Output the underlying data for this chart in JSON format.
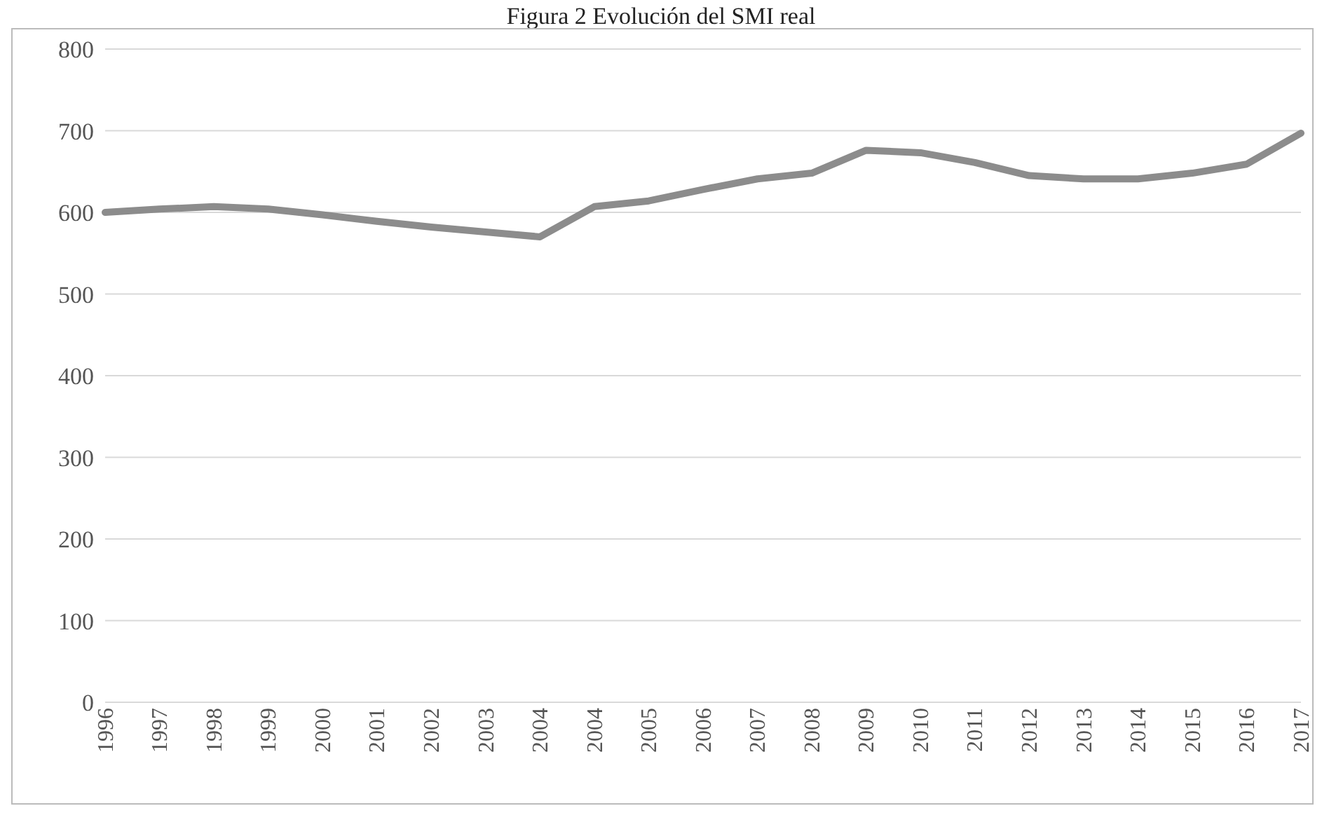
{
  "chart_data": {
    "type": "line",
    "title": "Figura 2 Evolución del SMI real",
    "categories": [
      "1996",
      "1997",
      "1998",
      "1999",
      "2000",
      "2001",
      "2002",
      "2003",
      "2004",
      "2004",
      "2005",
      "2006",
      "2007",
      "2008",
      "2009",
      "2010",
      "2011",
      "2012",
      "2013",
      "2014",
      "2015",
      "2016",
      "2017"
    ],
    "series": [
      {
        "color": "#8c8c8c",
        "values": [
          600,
          604,
          607,
          604,
          597,
          589,
          582,
          576,
          570,
          607,
          614,
          628,
          641,
          648,
          676,
          673,
          661,
          645,
          641,
          641,
          648,
          659,
          697
        ]
      }
    ],
    "ylim": [
      0,
      800
    ],
    "yticks": [
      0,
      100,
      200,
      300,
      400,
      500,
      600,
      700,
      800
    ],
    "grid": "y",
    "legend": false,
    "marker": "none",
    "line_style": "solid"
  }
}
